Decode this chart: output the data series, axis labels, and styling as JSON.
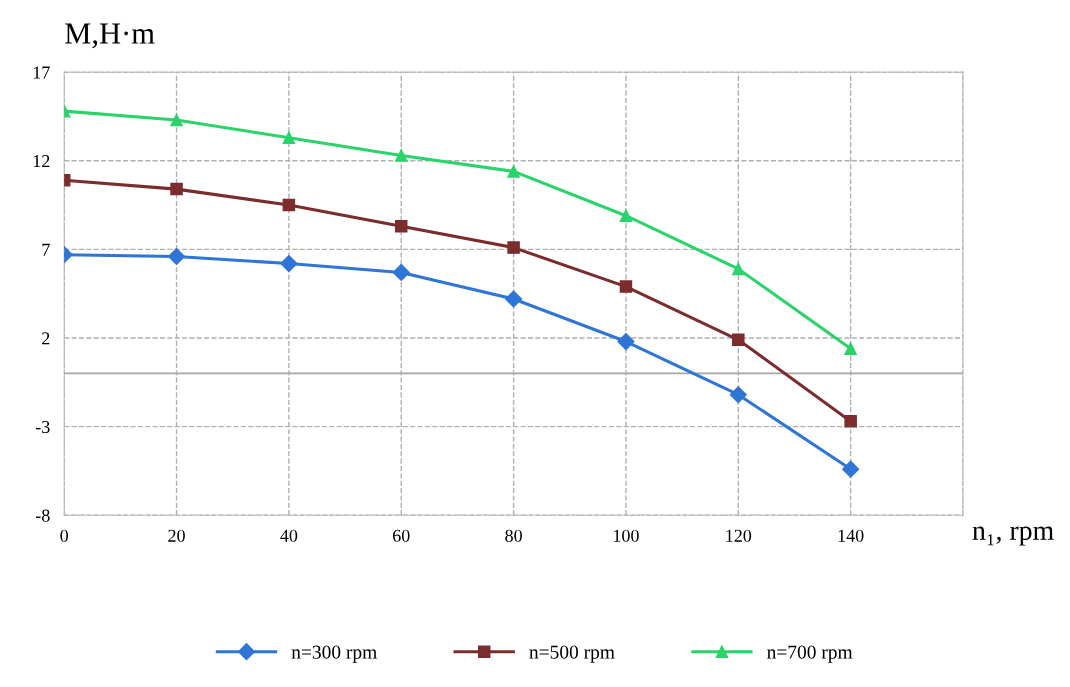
{
  "chart_data": {
    "type": "line",
    "xlabel": "n₁, rpm",
    "ylabel": "M,H·m",
    "x": [
      0,
      20,
      40,
      60,
      80,
      100,
      120,
      140
    ],
    "xlim": [
      0,
      160
    ],
    "xticks": [
      0,
      20,
      40,
      60,
      80,
      100,
      120,
      140,
      {
        "value": 160,
        "label": null
      }
    ],
    "ylim": [
      -8,
      17
    ],
    "yticks": [
      -8,
      -3,
      2,
      7,
      12,
      17
    ],
    "grid": true,
    "legend": "bottom",
    "line_style": "solid",
    "ref_lines": [
      {
        "axis": "y",
        "value": 0,
        "color": "#a6a6a6",
        "line_style": "solid"
      }
    ],
    "series": [
      {
        "name": "n=300 rpm",
        "color": "#2e75d6",
        "marker": "diamond",
        "values": [
          6.7,
          6.6,
          6.2,
          5.7,
          4.2,
          1.8,
          -1.2,
          -5.4
        ]
      },
      {
        "name": "n=500 rpm",
        "color": "#7b2c2c",
        "marker": "square",
        "values": [
          10.9,
          10.4,
          9.5,
          8.3,
          7.1,
          4.9,
          1.9,
          -2.7
        ]
      },
      {
        "name": "n=700 rpm",
        "color": "#2bd36b",
        "marker": "triangle",
        "values": [
          14.8,
          14.3,
          13.3,
          12.3,
          11.4,
          8.9,
          5.9,
          1.4
        ]
      }
    ]
  }
}
